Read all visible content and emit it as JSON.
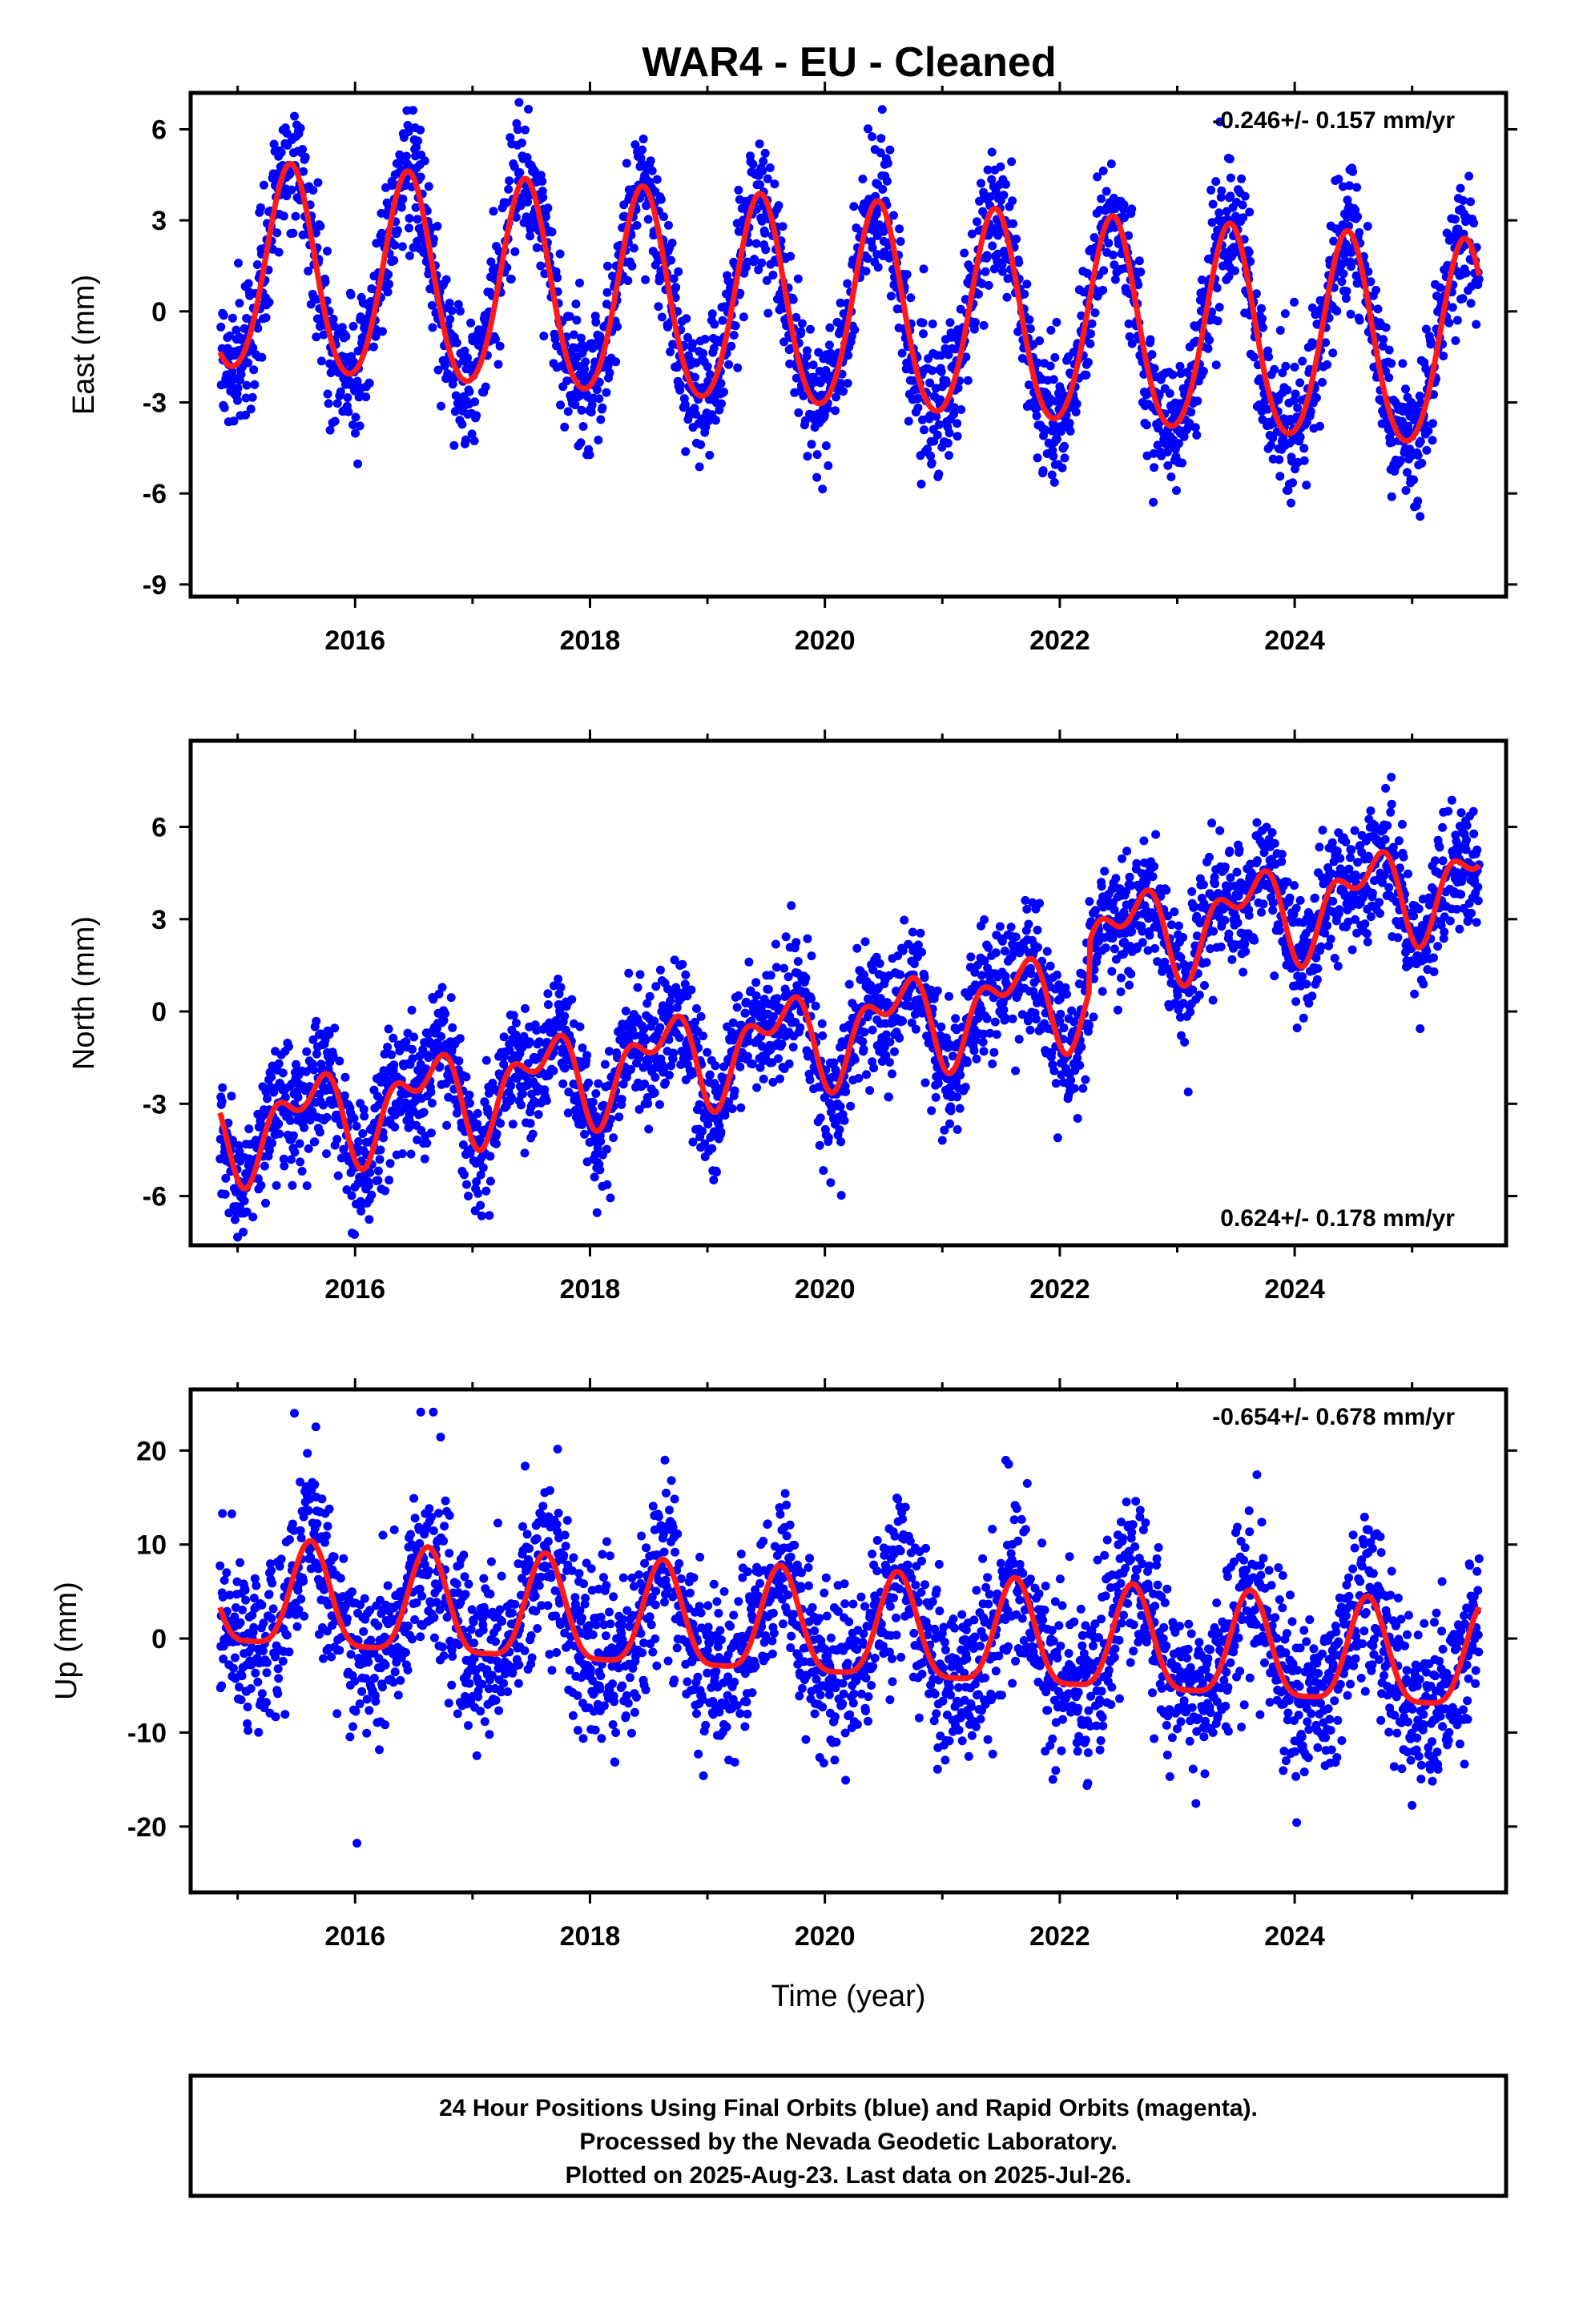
{
  "title": "WAR4  - EU - Cleaned",
  "footer": {
    "line1": "24 Hour Positions Using Final Orbits (blue) and Rapid Orbits (magenta).",
    "line2": "Processed by the Nevada Geodetic Laboratory.",
    "line3": "Plotted on 2025-Aug-23. Last data on 2025-Jul-26."
  },
  "colors": {
    "points": "#0000ff",
    "model": "#ff1a1a",
    "frame": "#000000"
  },
  "chart_data": [
    {
      "type": "scatter",
      "ylabel": "East (mm)",
      "xlabel": "",
      "rate_label": "-0.246+/- 0.157 mm/yr",
      "rate_position": "top-right",
      "xlim": [
        2014.6,
        2025.8
      ],
      "ylim": [
        -9.4,
        7.2
      ],
      "xticks": [
        2016,
        2018,
        2020,
        2022,
        2024
      ],
      "yticks": [
        -9,
        -6,
        -3,
        0,
        3,
        6
      ],
      "data_range": [
        2014.85,
        2025.57
      ],
      "model": {
        "offset": 0.0,
        "trend": -0.246,
        "ref_year": 2020.2,
        "annual_amp": 3.4,
        "annual_peak": 2015.45,
        "semiannual_amp": 0.3,
        "semiannual_peak": 2015.45,
        "steps": []
      },
      "scatter_sigma": 1.1,
      "n_points": 3100
    },
    {
      "type": "scatter",
      "ylabel": "North (mm)",
      "xlabel": "",
      "rate_label": "0.624+/- 0.178 mm/yr",
      "rate_position": "bottom-right",
      "xlim": [
        2014.6,
        2025.8
      ],
      "ylim": [
        -7.6,
        8.8
      ],
      "xticks": [
        2016,
        2018,
        2020,
        2022,
        2024
      ],
      "yticks": [
        -6,
        -3,
        0,
        3,
        6
      ],
      "data_range": [
        2014.85,
        2025.57
      ],
      "model": {
        "offset": -0.6,
        "trend": 0.624,
        "ref_year": 2020.2,
        "annual_amp": 1.2,
        "annual_peak": 2015.6,
        "semiannual_amp": 0.8,
        "semiannual_peak": 2015.3,
        "steps": [
          {
            "t": 2022.25,
            "dy": 1.6
          }
        ]
      },
      "scatter_sigma": 1.0,
      "n_points": 3100
    },
    {
      "type": "scatter",
      "ylabel": "Up (mm)",
      "xlabel": "Time (year)",
      "rate_label": "-0.654+/- 0.678 mm/yr",
      "rate_position": "top-right",
      "xlim": [
        2014.6,
        2025.8
      ],
      "ylim": [
        -27,
        26.5
      ],
      "xticks": [
        2016,
        2018,
        2020,
        2022,
        2024
      ],
      "yticks": [
        -20,
        -10,
        0,
        10,
        20
      ],
      "data_range": [
        2014.85,
        2025.57
      ],
      "model": {
        "offset": 0.5,
        "trend": -0.654,
        "ref_year": 2020.2,
        "annual_amp": 5.5,
        "annual_peak": 2015.62,
        "semiannual_amp": 1.4,
        "semiannual_peak": 2015.62,
        "steps": []
      },
      "scatter_sigma": 4.5,
      "n_points": 3100
    }
  ]
}
